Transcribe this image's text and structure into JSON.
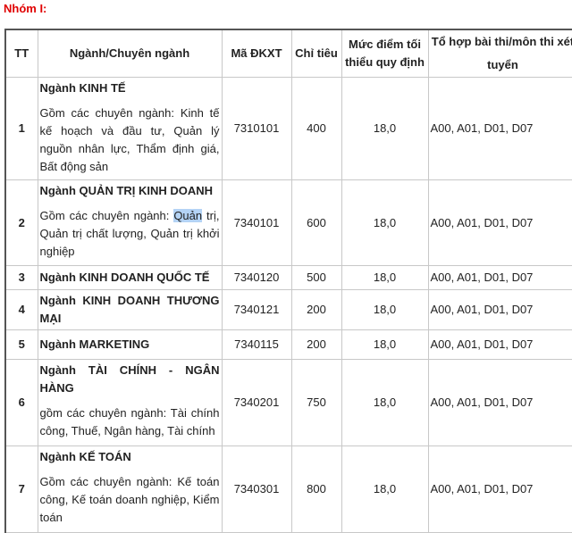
{
  "group_title": "Nhóm I:",
  "headers": [
    "TT",
    "Ngành/Chuyên ngành",
    "Mã ĐKXT",
    "Chỉ tiêu",
    "Mức điểm tối thiểu quy định",
    "Tổ hợp bài thi/môn thi xét tuyển"
  ],
  "rows": [
    {
      "tt": "1",
      "name": "Ngành KINH TẾ",
      "desc": "Gồm các chuyên ngành: Kinh tế kế hoạch và đầu tư, Quản lý nguồn nhân lực, Thẩm định giá, Bất động sản",
      "code": "7310101",
      "quota": "400",
      "min_score": "18,0",
      "combos": "A00, A01, D01, D07"
    },
    {
      "tt": "2",
      "name": "Ngành QUẢN TRỊ KINH DOANH",
      "desc_pre": "Gồm các chuyên ngành: ",
      "desc_hl": "Quản",
      "desc_post": " trị, Quản trị chất lượng, Quản trị khởi nghiệp",
      "code": "7340101",
      "quota": "600",
      "min_score": "18,0",
      "combos": "A00, A01, D01, D07"
    },
    {
      "tt": "3",
      "name": "Ngành KINH DOANH QUỐC TẾ",
      "code": "7340120",
      "quota": "500",
      "min_score": "18,0",
      "combos": "A00, A01, D01, D07"
    },
    {
      "tt": "4",
      "name": "Ngành KINH DOANH THƯƠNG MẠI",
      "code": "7340121",
      "quota": "200",
      "min_score": "18,0",
      "combos": "A00, A01, D01, D07"
    },
    {
      "tt": "5",
      "name": "Ngành MARKETING",
      "code": "7340115",
      "quota": "200",
      "min_score": "18,0",
      "combos": "A00, A01, D01, D07"
    },
    {
      "tt": "6",
      "name": "Ngành TÀI CHÍNH - NGÂN HÀNG",
      "desc": "gồm các chuyên ngành: Tài chính công, Thuế, Ngân hàng, Tài chính",
      "code": "7340201",
      "quota": "750",
      "min_score": "18,0",
      "combos": "A00, A01, D01, D07"
    },
    {
      "tt": "7",
      "name": "Ngành KẾ TOÁN",
      "desc": "Gồm các chuyên ngành: Kế toán công, Kế toán doanh nghiệp, Kiểm toán",
      "code": "7340301",
      "quota": "800",
      "min_score": "18,0",
      "combos": "A00, A01, D01, D07"
    }
  ]
}
